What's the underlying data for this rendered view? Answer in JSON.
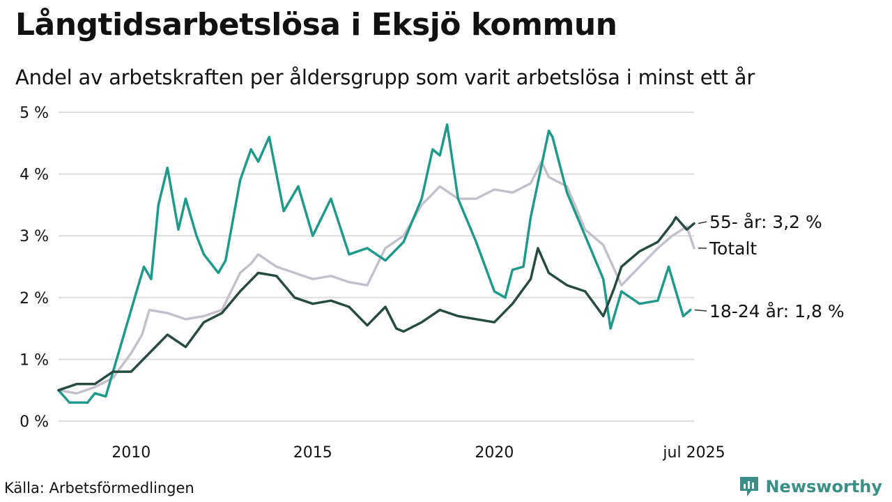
{
  "title": "Långtidsarbetslösa i Eksjö kommun",
  "subtitle": "Andel av arbetskraften per åldersgrupp som varit arbetslösa i minst ett år",
  "source": "Källa: Arbetsförmedlingen",
  "brand": "Newsworthy",
  "colors": {
    "totalt": "#c4c0cc",
    "s55": "#274a43",
    "s1824": "#1f9a8a",
    "grid": "#dddddd",
    "brand": "#3a8f87"
  },
  "chart_data": {
    "type": "line",
    "ylim": [
      0,
      5
    ],
    "yticks": [
      0,
      1,
      2,
      3,
      4,
      5
    ],
    "ytick_labels": [
      "0 %",
      "1 %",
      "2 %",
      "3 %",
      "4 %",
      "5 %"
    ],
    "xlim": [
      2008.0,
      2025.5
    ],
    "xticks": [
      2010,
      2015,
      2020,
      2025.5
    ],
    "xtick_labels": [
      "2010",
      "2015",
      "2020",
      "jul 2025"
    ],
    "series": [
      {
        "key": "totalt",
        "name": "Totalt",
        "label": "Totalt",
        "x": [
          2008.0,
          2008.5,
          2009.0,
          2009.5,
          2010.0,
          2010.3,
          2010.5,
          2011.0,
          2011.5,
          2012.0,
          2012.5,
          2013.0,
          2013.3,
          2013.5,
          2014.0,
          2014.5,
          2015.0,
          2015.5,
          2016.0,
          2016.5,
          2017.0,
          2017.5,
          2018.0,
          2018.5,
          2019.0,
          2019.5,
          2020.0,
          2020.5,
          2021.0,
          2021.3,
          2021.5,
          2022.0,
          2022.5,
          2023.0,
          2023.5,
          2024.0,
          2024.5,
          2024.9,
          2025.3,
          2025.5
        ],
        "values": [
          0.5,
          0.45,
          0.55,
          0.7,
          1.1,
          1.4,
          1.8,
          1.75,
          1.65,
          1.7,
          1.8,
          2.4,
          2.55,
          2.7,
          2.5,
          2.4,
          2.3,
          2.35,
          2.25,
          2.2,
          2.8,
          3.0,
          3.5,
          3.8,
          3.6,
          3.6,
          3.75,
          3.7,
          3.85,
          4.2,
          3.95,
          3.8,
          3.1,
          2.85,
          2.2,
          2.5,
          2.8,
          3.0,
          3.15,
          2.8
        ]
      },
      {
        "key": "s55",
        "name": "55- år",
        "label": "55- år: 3,2 %",
        "x": [
          2008.0,
          2008.5,
          2009.0,
          2009.5,
          2010.0,
          2010.5,
          2011.0,
          2011.5,
          2012.0,
          2012.5,
          2013.0,
          2013.5,
          2014.0,
          2014.5,
          2015.0,
          2015.5,
          2016.0,
          2016.5,
          2017.0,
          2017.3,
          2017.5,
          2018.0,
          2018.5,
          2019.0,
          2019.5,
          2020.0,
          2020.5,
          2021.0,
          2021.2,
          2021.5,
          2022.0,
          2022.5,
          2023.0,
          2023.3,
          2023.5,
          2024.0,
          2024.5,
          2024.9,
          2025.0,
          2025.3,
          2025.5
        ],
        "values": [
          0.5,
          0.6,
          0.6,
          0.8,
          0.8,
          1.1,
          1.4,
          1.2,
          1.6,
          1.75,
          2.1,
          2.4,
          2.35,
          2.0,
          1.9,
          1.95,
          1.85,
          1.55,
          1.85,
          1.5,
          1.45,
          1.6,
          1.8,
          1.7,
          1.65,
          1.6,
          1.9,
          2.3,
          2.8,
          2.4,
          2.2,
          2.1,
          1.7,
          2.15,
          2.5,
          2.75,
          2.9,
          3.2,
          3.3,
          3.1,
          3.2
        ]
      },
      {
        "key": "s1824",
        "name": "18-24 år",
        "label": "18-24 år: 1,8 %",
        "x": [
          2008.0,
          2008.3,
          2008.8,
          2009.0,
          2009.3,
          2009.6,
          2009.9,
          2010.1,
          2010.35,
          2010.55,
          2010.75,
          2011.0,
          2011.3,
          2011.5,
          2011.8,
          2012.0,
          2012.4,
          2012.6,
          2013.0,
          2013.3,
          2013.5,
          2013.8,
          2014.2,
          2014.6,
          2015.0,
          2015.5,
          2016.0,
          2016.5,
          2017.0,
          2017.5,
          2018.0,
          2018.3,
          2018.5,
          2018.7,
          2019.0,
          2019.5,
          2020.0,
          2020.3,
          2020.5,
          2020.8,
          2021.0,
          2021.5,
          2021.6,
          2022.0,
          2022.5,
          2023.0,
          2023.2,
          2023.5,
          2024.0,
          2024.5,
          2024.8,
          2025.0,
          2025.2,
          2025.4
        ],
        "values": [
          0.5,
          0.3,
          0.3,
          0.45,
          0.4,
          1.0,
          1.6,
          2.0,
          2.5,
          2.3,
          3.5,
          4.1,
          3.1,
          3.6,
          3.0,
          2.7,
          2.4,
          2.6,
          3.9,
          4.4,
          4.2,
          4.6,
          3.4,
          3.8,
          3.0,
          3.6,
          2.7,
          2.8,
          2.6,
          2.9,
          3.6,
          4.4,
          4.3,
          4.8,
          3.6,
          2.9,
          2.1,
          2.0,
          2.45,
          2.5,
          3.3,
          4.7,
          4.6,
          3.7,
          3.0,
          2.3,
          1.5,
          2.1,
          1.9,
          1.95,
          2.5,
          2.1,
          1.7,
          1.8
        ]
      }
    ]
  }
}
